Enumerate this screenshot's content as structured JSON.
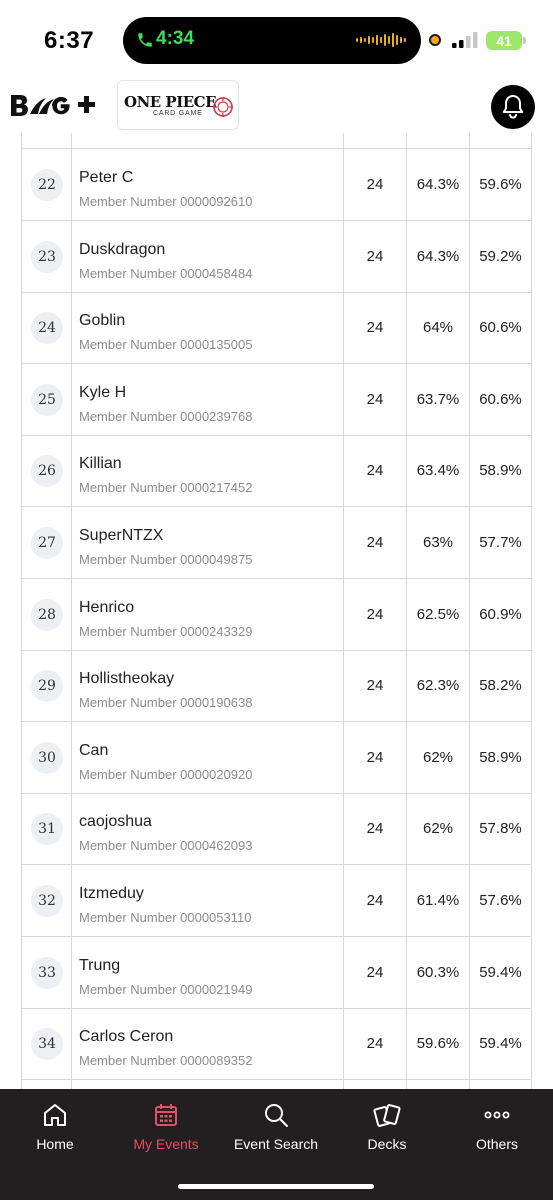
{
  "status_bar": {
    "time": "6:37",
    "call_time": "4:34",
    "battery": "41",
    "accent_call": "#3ddc5a",
    "accent_battery": "#9ee66b"
  },
  "header": {
    "logo_icon": "bandai-tcg-plus-logo",
    "brand_title": "ONE PIECE",
    "brand_subtitle": "CARD GAME",
    "bell_icon": "bell-icon"
  },
  "rankings": [
    {
      "rank": "22",
      "name": "Peter C",
      "member": "Member Number 0000092610",
      "points": "24",
      "omw": "64.3%",
      "oomw": "59.6%"
    },
    {
      "rank": "23",
      "name": "Duskdragon",
      "member": "Member Number 0000458484",
      "points": "24",
      "omw": "64.3%",
      "oomw": "59.2%"
    },
    {
      "rank": "24",
      "name": "Goblin",
      "member": "Member Number 0000135005",
      "points": "24",
      "omw": "64%",
      "oomw": "60.6%"
    },
    {
      "rank": "25",
      "name": "Kyle H",
      "member": "Member Number 0000239768",
      "points": "24",
      "omw": "63.7%",
      "oomw": "60.6%"
    },
    {
      "rank": "26",
      "name": "Killian",
      "member": "Member Number 0000217452",
      "points": "24",
      "omw": "63.4%",
      "oomw": "58.9%"
    },
    {
      "rank": "27",
      "name": "SuperNTZX",
      "member": "Member Number 0000049875",
      "points": "24",
      "omw": "63%",
      "oomw": "57.7%"
    },
    {
      "rank": "28",
      "name": "Henrico",
      "member": "Member Number 0000243329",
      "points": "24",
      "omw": "62.5%",
      "oomw": "60.9%"
    },
    {
      "rank": "29",
      "name": "Hollistheokay",
      "member": "Member Number 0000190638",
      "points": "24",
      "omw": "62.3%",
      "oomw": "58.2%"
    },
    {
      "rank": "30",
      "name": "Can",
      "member": "Member Number 0000020920",
      "points": "24",
      "omw": "62%",
      "oomw": "58.9%"
    },
    {
      "rank": "31",
      "name": "caojoshua",
      "member": "Member Number 0000462093",
      "points": "24",
      "omw": "62%",
      "oomw": "57.8%"
    },
    {
      "rank": "32",
      "name": "Itzmeduy",
      "member": "Member Number 0000053110",
      "points": "24",
      "omw": "61.4%",
      "oomw": "57.6%"
    },
    {
      "rank": "33",
      "name": "Trung",
      "member": "Member Number 0000021949",
      "points": "24",
      "omw": "60.3%",
      "oomw": "59.4%"
    },
    {
      "rank": "34",
      "name": "Carlos Ceron",
      "member": "Member Number 0000089352",
      "points": "24",
      "omw": "59.6%",
      "oomw": "59.4%"
    }
  ],
  "bottom_nav": {
    "active_color": "#e0506a",
    "items": [
      {
        "label": "Home",
        "icon": "home-icon"
      },
      {
        "label": "My Events",
        "icon": "calendar-icon"
      },
      {
        "label": "Event Search",
        "icon": "search-icon"
      },
      {
        "label": "Decks",
        "icon": "cards-icon"
      },
      {
        "label": "Others",
        "icon": "more-icon"
      }
    ]
  }
}
